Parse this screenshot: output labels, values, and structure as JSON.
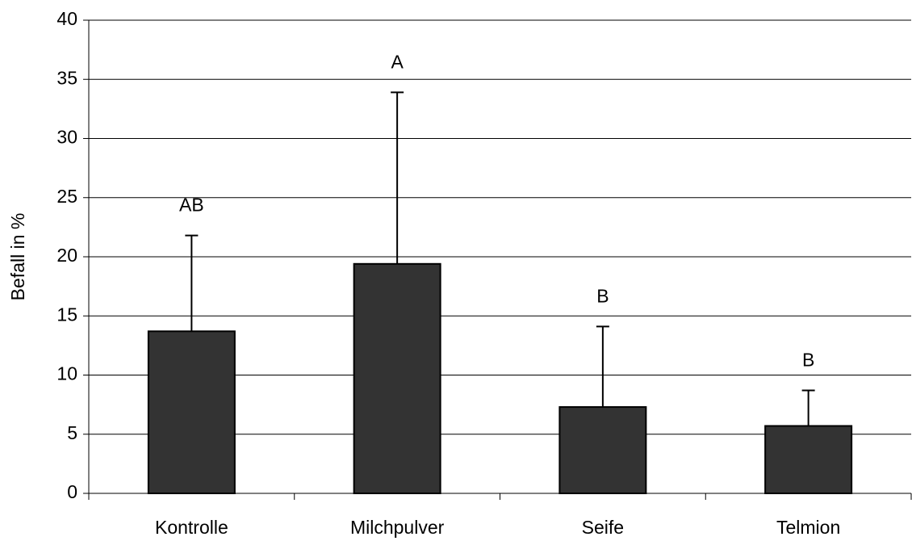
{
  "chart_data": {
    "type": "bar",
    "y_label": "Befall in %",
    "categories": [
      "Kontrolle",
      "Milchpulver",
      "Seife",
      "Telmion"
    ],
    "values": [
      13.7,
      19.4,
      7.3,
      5.7
    ],
    "errors": [
      8.1,
      14.5,
      6.8,
      3.0
    ],
    "annotations": [
      "AB",
      "A",
      "B",
      "B"
    ],
    "color": "#333333",
    "ylim": [
      0,
      40
    ],
    "yticks": [
      0,
      5,
      10,
      15,
      20,
      25,
      30,
      35,
      40
    ],
    "grid": true
  }
}
